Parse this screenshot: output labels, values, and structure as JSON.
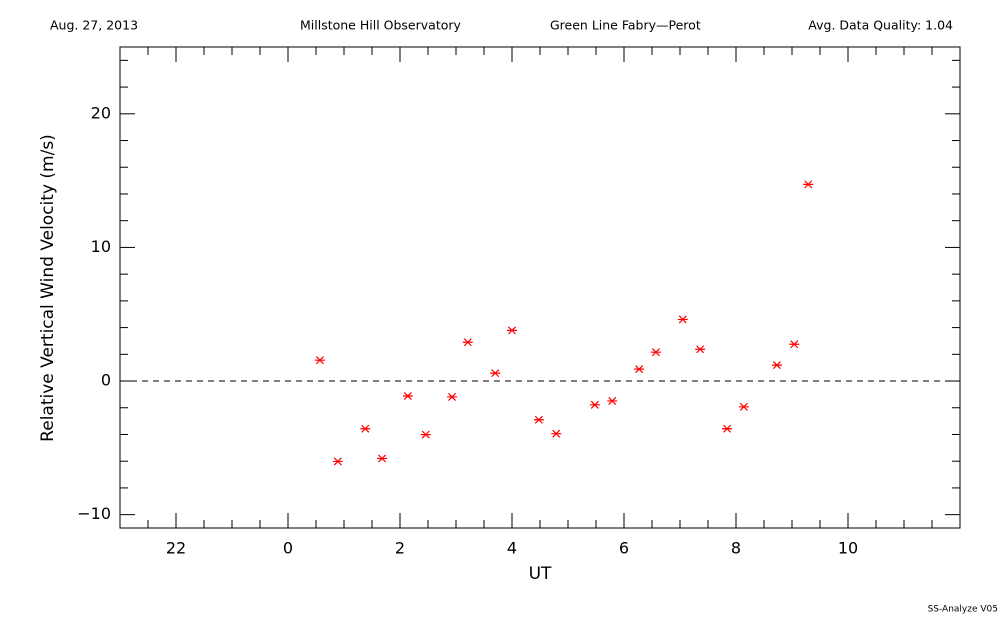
{
  "chart_data": {
    "type": "scatter",
    "header": {
      "date": "Aug. 27, 2013",
      "site": "Millstone Hill Observatory",
      "instrument": "Green Line Fabry—Perot",
      "quality": "Avg. Data Quality: 1.04"
    },
    "footer": "SS-Analyze V05",
    "x_label": "UT",
    "y_label": "Relative Vertical Wind Velocity (m/s)",
    "color": "#ff0000",
    "x": [
      0.57,
      0.89,
      1.38,
      1.68,
      2.14,
      2.46,
      2.93,
      3.21,
      3.7,
      4.0,
      4.48,
      4.79,
      5.48,
      5.79,
      6.27,
      6.57,
      7.05,
      7.36,
      7.84,
      8.14,
      8.73,
      9.04,
      9.29
    ],
    "values": [
      1.56,
      -6.02,
      -3.57,
      -5.8,
      -1.12,
      -4.01,
      -1.19,
      2.9,
      0.59,
      3.79,
      -2.9,
      -3.94,
      -1.78,
      -1.49,
      0.89,
      2.16,
      4.61,
      2.38,
      -3.57,
      -1.93,
      1.19,
      2.75,
      14.72
    ],
    "xlim": [
      -3,
      12
    ],
    "ylim": [
      -11,
      25
    ],
    "xticks": [
      {
        "value": -2,
        "label": "22"
      },
      0,
      2,
      4,
      6,
      8,
      10
    ],
    "yticks": [
      {
        "value": -10,
        "label": "−10"
      },
      0,
      10,
      20
    ],
    "xminorticks": [
      -2.5,
      -1.5,
      -1,
      -0.5,
      0.5,
      1,
      1.5,
      2.5,
      3,
      3.5,
      4.5,
      5,
      5.5,
      6.5,
      7,
      7.5,
      8.5,
      9,
      9.5,
      10.5,
      11,
      11.5
    ],
    "yminorticks": [
      -8,
      -6,
      -4,
      -2,
      2,
      4,
      6,
      8,
      12,
      14,
      16,
      18,
      22,
      24
    ],
    "reference_line": 0
  }
}
